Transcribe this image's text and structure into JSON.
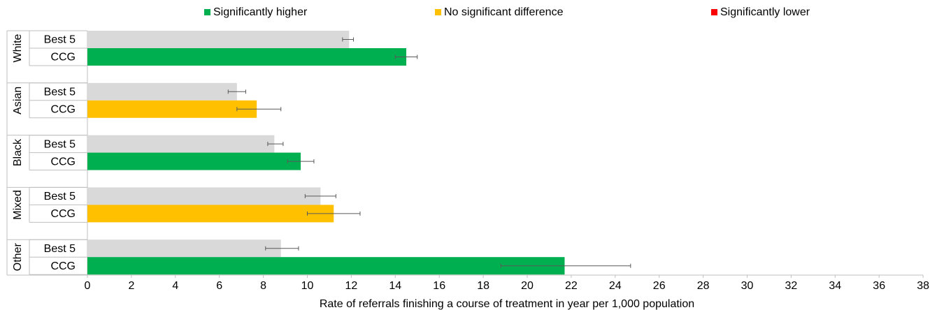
{
  "chart_data": {
    "type": "bar",
    "orientation": "horizontal",
    "xlabel": "Rate of referrals finishing a course of treatment in year per 1,000 population",
    "xlim": [
      0,
      38
    ],
    "xticks": [
      "0",
      "2",
      "4",
      "6",
      "8",
      "10",
      "12",
      "14",
      "16",
      "18",
      "20",
      "22",
      "24",
      "26",
      "28",
      "30",
      "32",
      "34",
      "36",
      "38"
    ],
    "grid": false,
    "legend_position": "top",
    "legend": [
      {
        "key": "higher",
        "label": "Significantly higher",
        "color": "#00b050"
      },
      {
        "key": "nosig",
        "label": "No significant difference",
        "color": "#ffc000"
      },
      {
        "key": "lower",
        "label": "Significantly lower",
        "color": "#ff0000"
      }
    ],
    "reference_color": "#d9d9d9",
    "groups": [
      {
        "name": "White",
        "bars": [
          {
            "label": "Best 5",
            "value": 11.9,
            "err_low": 11.6,
            "err_high": 12.1,
            "status": "reference"
          },
          {
            "label": "CCG",
            "value": 14.5,
            "err_low": 14.0,
            "err_high": 15.0,
            "status": "higher"
          }
        ]
      },
      {
        "name": "Asian",
        "bars": [
          {
            "label": "Best 5",
            "value": 6.8,
            "err_low": 6.4,
            "err_high": 7.2,
            "status": "reference"
          },
          {
            "label": "CCG",
            "value": 7.7,
            "err_low": 6.8,
            "err_high": 8.8,
            "status": "nosig"
          }
        ]
      },
      {
        "name": "Black",
        "bars": [
          {
            "label": "Best 5",
            "value": 8.5,
            "err_low": 8.2,
            "err_high": 8.9,
            "status": "reference"
          },
          {
            "label": "CCG",
            "value": 9.7,
            "err_low": 9.1,
            "err_high": 10.3,
            "status": "higher"
          }
        ]
      },
      {
        "name": "Mixed",
        "bars": [
          {
            "label": "Best 5",
            "value": 10.6,
            "err_low": 9.9,
            "err_high": 11.3,
            "status": "reference"
          },
          {
            "label": "CCG",
            "value": 11.2,
            "err_low": 10.0,
            "err_high": 12.4,
            "status": "nosig"
          }
        ]
      },
      {
        "name": "Other",
        "bars": [
          {
            "label": "Best 5",
            "value": 8.8,
            "err_low": 8.1,
            "err_high": 9.6,
            "status": "reference"
          },
          {
            "label": "CCG",
            "value": 21.7,
            "err_low": 18.8,
            "err_high": 24.7,
            "status": "higher"
          }
        ]
      }
    ]
  }
}
